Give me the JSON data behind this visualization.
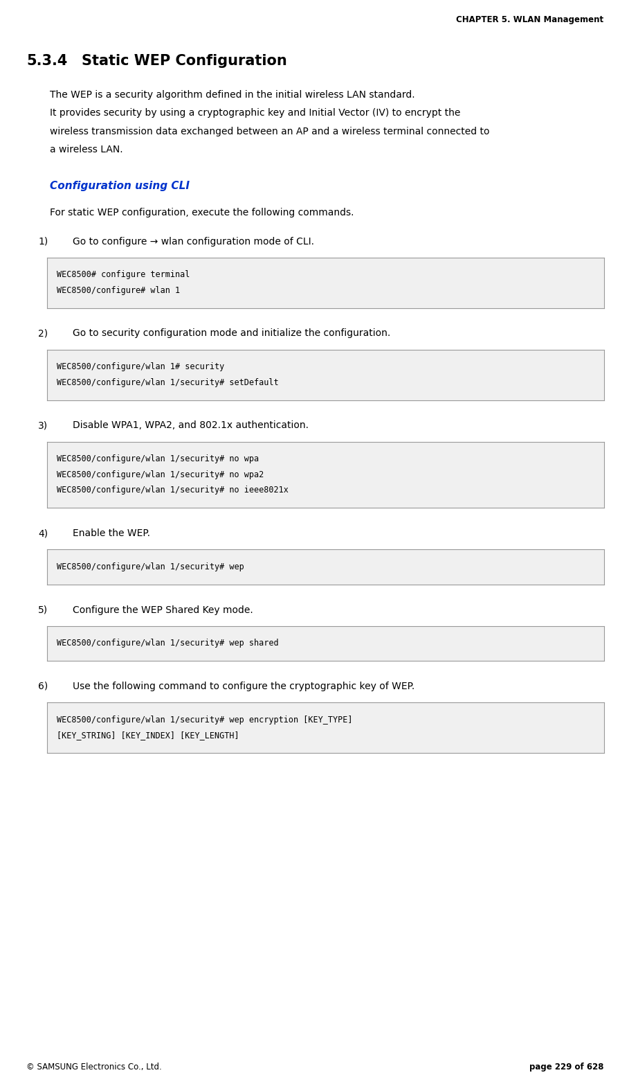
{
  "page_width": 9.22,
  "page_height": 15.65,
  "dpi": 100,
  "bg_color": "#ffffff",
  "header_text": "CHAPTER 5. WLAN Management",
  "footer_left": "© SAMSUNG Electronics Co., Ltd.",
  "footer_right": "page 229 of 628",
  "section_number": "5.3.4",
  "section_title": "Static WEP Configuration",
  "body_text_1": "The WEP is a security algorithm defined in the initial wireless LAN standard.",
  "body_text_2a": "It provides security by using a cryptographic key and Initial Vector (IV) to encrypt the",
  "body_text_2b": "wireless transmission data exchanged between an AP and a wireless terminal connected to",
  "body_text_2c": "a wireless LAN.",
  "cli_heading": "Configuration using CLI",
  "cli_intro": "For static WEP configuration, execute the following commands.",
  "steps": [
    {
      "number": "1)",
      "text": "Go to configure → wlan configuration mode of CLI.",
      "code_lines": [
        "WEC8500# configure terminal",
        "WEC8500/configure# wlan 1"
      ]
    },
    {
      "number": "2)",
      "text": "Go to security configuration mode and initialize the configuration.",
      "code_lines": [
        "WEC8500/configure/wlan 1# security",
        "WEC8500/configure/wlan 1/security# setDefault"
      ]
    },
    {
      "number": "3)",
      "text": "Disable WPA1, WPA2, and 802.1x authentication.",
      "code_lines": [
        "WEC8500/configure/wlan 1/security# no wpa",
        "WEC8500/configure/wlan 1/security# no wpa2",
        "WEC8500/configure/wlan 1/security# no ieee8021x"
      ]
    },
    {
      "number": "4)",
      "text": "Enable the WEP.",
      "code_lines": [
        "WEC8500/configure/wlan 1/security# wep"
      ]
    },
    {
      "number": "5)",
      "text": "Configure the WEP Shared Key mode.",
      "code_lines": [
        "WEC8500/configure/wlan 1/security# wep shared"
      ]
    },
    {
      "number": "6)",
      "text": "Use the following command to configure the cryptographic key of WEP.",
      "code_lines": [
        "WEC8500/configure/wlan 1/security# wep encryption [KEY_TYPE]",
        "[KEY_STRING] [KEY_INDEX] [KEY_LENGTH]"
      ]
    }
  ],
  "header_color": "#000000",
  "cli_heading_color": "#0033cc",
  "section_title_color": "#000000",
  "body_color": "#000000",
  "code_bg_color": "#f0f0f0",
  "code_border_color": "#999999",
  "code_text_color": "#000000"
}
